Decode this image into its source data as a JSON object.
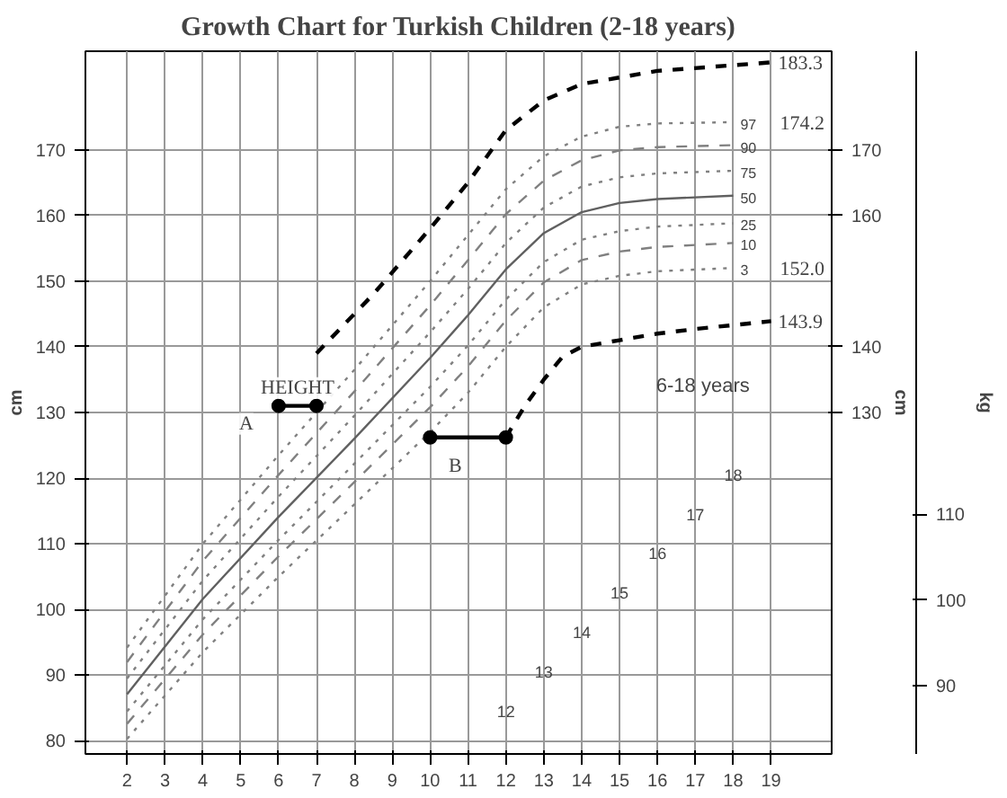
{
  "chart_data": {
    "type": "line",
    "title": "Growth Chart for Turkish Children (2-18 years)",
    "ylabel": "cm",
    "y2label": "cm",
    "y3label": "kg",
    "x": [
      2,
      4,
      6,
      8,
      10,
      11,
      12,
      13,
      14,
      15,
      16,
      18
    ],
    "series": [
      {
        "name": "97",
        "color": "#808080",
        "line_style": "dotted",
        "values": [
          94.2,
          110,
          123.5,
          136.5,
          150,
          157,
          164,
          169,
          172,
          173.5,
          174,
          174.2
        ]
      },
      {
        "name": "90",
        "color": "#808080",
        "line_style": "dashed",
        "values": [
          92.0,
          107.4,
          120.5,
          133.2,
          146.3,
          153.2,
          160.2,
          165.3,
          168.4,
          169.9,
          170.4,
          170.7
        ]
      },
      {
        "name": "75",
        "color": "#808080",
        "line_style": "dotted",
        "values": [
          89.5,
          104.4,
          117.2,
          129.5,
          142.2,
          148.8,
          155.8,
          161.2,
          164.4,
          165.8,
          166.4,
          166.8
        ]
      },
      {
        "name": "50",
        "color": "#606060",
        "line_style": "solid",
        "values": [
          87.1,
          101.6,
          114.1,
          126,
          138.3,
          144.8,
          151.8,
          157.3,
          160.5,
          161.9,
          162.5,
          163.0
        ]
      },
      {
        "name": "25",
        "color": "#808080",
        "line_style": "dotted",
        "values": [
          84.5,
          98.5,
          110.6,
          122.2,
          133.9,
          140.2,
          147.2,
          152.9,
          156.3,
          157.6,
          158.3,
          158.8
        ]
      },
      {
        "name": "10",
        "color": "#808080",
        "line_style": "dashed",
        "values": [
          82.6,
          96.2,
          108.1,
          119.4,
          130.8,
          137.0,
          144.0,
          149.8,
          153.2,
          154.5,
          155.2,
          155.8
        ]
      },
      {
        "name": "3",
        "color": "#808080",
        "line_style": "dotted",
        "values": [
          80.3,
          93.5,
          105,
          116,
          127,
          133,
          140,
          146,
          149.5,
          150.8,
          151.5,
          152.0
        ]
      },
      {
        "color": "#000000",
        "line_style": "dashed",
        "x": [
          7,
          8.5,
          10,
          11,
          12,
          13,
          14,
          16,
          19
        ],
        "values": [
          139,
          148,
          158,
          165,
          173,
          177.5,
          180,
          182,
          183.3
        ]
      },
      {
        "color": "#000000",
        "line_style": "dashed",
        "x": [
          12,
          12.5,
          13,
          13.5,
          14,
          15,
          16,
          17,
          18,
          19
        ],
        "values": [
          126.2,
          131,
          135,
          138.5,
          140,
          141,
          142,
          142.7,
          143.3,
          143.9
        ]
      },
      {
        "color": "#000000",
        "line_style": "solid",
        "marker": "circle",
        "x": [
          6,
          7
        ],
        "values": [
          131,
          131
        ]
      },
      {
        "color": "#000000",
        "line_style": "solid",
        "marker": "circle",
        "x": [
          12,
          10
        ],
        "values": [
          126.2,
          126.2
        ]
      }
    ],
    "xlim": [
      0.9,
      20.6
    ],
    "xticks": [
      2,
      3,
      4,
      5,
      6,
      7,
      8,
      9,
      10,
      11,
      12,
      13,
      14,
      15,
      16,
      17,
      18,
      19
    ],
    "ylim": [
      78,
      185
    ],
    "yticks": [
      80,
      90,
      100,
      110,
      120,
      130,
      140,
      150,
      160,
      170
    ],
    "y2lim": [
      78,
      185
    ],
    "y2ticks": [
      130,
      140,
      160,
      170
    ],
    "y3lim": [
      82.1,
      163.9
    ],
    "y3ticks": [
      90,
      100,
      110
    ],
    "grid": true,
    "annotations": [
      {
        "text": "183.3",
        "x": 19,
        "y": 183.3
      },
      {
        "text": "174.2",
        "x": 18,
        "y": 174.2
      },
      {
        "text": "152.0",
        "x": 18,
        "y": 152.0
      },
      {
        "text": "143.9",
        "x": 19,
        "y": 143.9
      },
      {
        "text": "HEIGHT",
        "x": 6.5,
        "y": 131
      },
      {
        "text": "A",
        "x": 6,
        "y": 131
      },
      {
        "text": "B",
        "x": 10,
        "y": 126.2
      },
      "6-18 years",
      "12",
      "13",
      "14",
      "15",
      "16",
      "17",
      "18"
    ]
  }
}
